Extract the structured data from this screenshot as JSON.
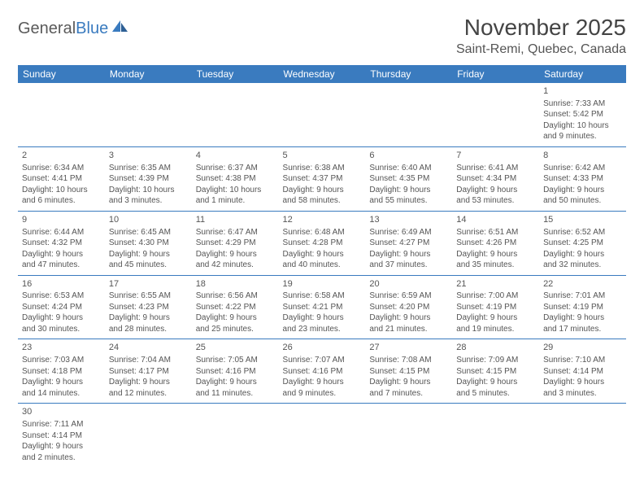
{
  "logo": {
    "part1": "General",
    "part2": "Blue"
  },
  "title": "November 2025",
  "location": "Saint-Remi, Quebec, Canada",
  "colors": {
    "header_bg": "#3a7bbf",
    "header_text": "#ffffff",
    "border": "#3a7bbf",
    "body_text": "#555555",
    "page_bg": "#ffffff"
  },
  "weekdays": [
    "Sunday",
    "Monday",
    "Tuesday",
    "Wednesday",
    "Thursday",
    "Friday",
    "Saturday"
  ],
  "weeks": [
    [
      null,
      null,
      null,
      null,
      null,
      null,
      {
        "n": "1",
        "sr": "Sunrise: 7:33 AM",
        "ss": "Sunset: 5:42 PM",
        "d1": "Daylight: 10 hours",
        "d2": "and 9 minutes."
      }
    ],
    [
      {
        "n": "2",
        "sr": "Sunrise: 6:34 AM",
        "ss": "Sunset: 4:41 PM",
        "d1": "Daylight: 10 hours",
        "d2": "and 6 minutes."
      },
      {
        "n": "3",
        "sr": "Sunrise: 6:35 AM",
        "ss": "Sunset: 4:39 PM",
        "d1": "Daylight: 10 hours",
        "d2": "and 3 minutes."
      },
      {
        "n": "4",
        "sr": "Sunrise: 6:37 AM",
        "ss": "Sunset: 4:38 PM",
        "d1": "Daylight: 10 hours",
        "d2": "and 1 minute."
      },
      {
        "n": "5",
        "sr": "Sunrise: 6:38 AM",
        "ss": "Sunset: 4:37 PM",
        "d1": "Daylight: 9 hours",
        "d2": "and 58 minutes."
      },
      {
        "n": "6",
        "sr": "Sunrise: 6:40 AM",
        "ss": "Sunset: 4:35 PM",
        "d1": "Daylight: 9 hours",
        "d2": "and 55 minutes."
      },
      {
        "n": "7",
        "sr": "Sunrise: 6:41 AM",
        "ss": "Sunset: 4:34 PM",
        "d1": "Daylight: 9 hours",
        "d2": "and 53 minutes."
      },
      {
        "n": "8",
        "sr": "Sunrise: 6:42 AM",
        "ss": "Sunset: 4:33 PM",
        "d1": "Daylight: 9 hours",
        "d2": "and 50 minutes."
      }
    ],
    [
      {
        "n": "9",
        "sr": "Sunrise: 6:44 AM",
        "ss": "Sunset: 4:32 PM",
        "d1": "Daylight: 9 hours",
        "d2": "and 47 minutes."
      },
      {
        "n": "10",
        "sr": "Sunrise: 6:45 AM",
        "ss": "Sunset: 4:30 PM",
        "d1": "Daylight: 9 hours",
        "d2": "and 45 minutes."
      },
      {
        "n": "11",
        "sr": "Sunrise: 6:47 AM",
        "ss": "Sunset: 4:29 PM",
        "d1": "Daylight: 9 hours",
        "d2": "and 42 minutes."
      },
      {
        "n": "12",
        "sr": "Sunrise: 6:48 AM",
        "ss": "Sunset: 4:28 PM",
        "d1": "Daylight: 9 hours",
        "d2": "and 40 minutes."
      },
      {
        "n": "13",
        "sr": "Sunrise: 6:49 AM",
        "ss": "Sunset: 4:27 PM",
        "d1": "Daylight: 9 hours",
        "d2": "and 37 minutes."
      },
      {
        "n": "14",
        "sr": "Sunrise: 6:51 AM",
        "ss": "Sunset: 4:26 PM",
        "d1": "Daylight: 9 hours",
        "d2": "and 35 minutes."
      },
      {
        "n": "15",
        "sr": "Sunrise: 6:52 AM",
        "ss": "Sunset: 4:25 PM",
        "d1": "Daylight: 9 hours",
        "d2": "and 32 minutes."
      }
    ],
    [
      {
        "n": "16",
        "sr": "Sunrise: 6:53 AM",
        "ss": "Sunset: 4:24 PM",
        "d1": "Daylight: 9 hours",
        "d2": "and 30 minutes."
      },
      {
        "n": "17",
        "sr": "Sunrise: 6:55 AM",
        "ss": "Sunset: 4:23 PM",
        "d1": "Daylight: 9 hours",
        "d2": "and 28 minutes."
      },
      {
        "n": "18",
        "sr": "Sunrise: 6:56 AM",
        "ss": "Sunset: 4:22 PM",
        "d1": "Daylight: 9 hours",
        "d2": "and 25 minutes."
      },
      {
        "n": "19",
        "sr": "Sunrise: 6:58 AM",
        "ss": "Sunset: 4:21 PM",
        "d1": "Daylight: 9 hours",
        "d2": "and 23 minutes."
      },
      {
        "n": "20",
        "sr": "Sunrise: 6:59 AM",
        "ss": "Sunset: 4:20 PM",
        "d1": "Daylight: 9 hours",
        "d2": "and 21 minutes."
      },
      {
        "n": "21",
        "sr": "Sunrise: 7:00 AM",
        "ss": "Sunset: 4:19 PM",
        "d1": "Daylight: 9 hours",
        "d2": "and 19 minutes."
      },
      {
        "n": "22",
        "sr": "Sunrise: 7:01 AM",
        "ss": "Sunset: 4:19 PM",
        "d1": "Daylight: 9 hours",
        "d2": "and 17 minutes."
      }
    ],
    [
      {
        "n": "23",
        "sr": "Sunrise: 7:03 AM",
        "ss": "Sunset: 4:18 PM",
        "d1": "Daylight: 9 hours",
        "d2": "and 14 minutes."
      },
      {
        "n": "24",
        "sr": "Sunrise: 7:04 AM",
        "ss": "Sunset: 4:17 PM",
        "d1": "Daylight: 9 hours",
        "d2": "and 12 minutes."
      },
      {
        "n": "25",
        "sr": "Sunrise: 7:05 AM",
        "ss": "Sunset: 4:16 PM",
        "d1": "Daylight: 9 hours",
        "d2": "and 11 minutes."
      },
      {
        "n": "26",
        "sr": "Sunrise: 7:07 AM",
        "ss": "Sunset: 4:16 PM",
        "d1": "Daylight: 9 hours",
        "d2": "and 9 minutes."
      },
      {
        "n": "27",
        "sr": "Sunrise: 7:08 AM",
        "ss": "Sunset: 4:15 PM",
        "d1": "Daylight: 9 hours",
        "d2": "and 7 minutes."
      },
      {
        "n": "28",
        "sr": "Sunrise: 7:09 AM",
        "ss": "Sunset: 4:15 PM",
        "d1": "Daylight: 9 hours",
        "d2": "and 5 minutes."
      },
      {
        "n": "29",
        "sr": "Sunrise: 7:10 AM",
        "ss": "Sunset: 4:14 PM",
        "d1": "Daylight: 9 hours",
        "d2": "and 3 minutes."
      }
    ],
    [
      {
        "n": "30",
        "sr": "Sunrise: 7:11 AM",
        "ss": "Sunset: 4:14 PM",
        "d1": "Daylight: 9 hours",
        "d2": "and 2 minutes."
      },
      null,
      null,
      null,
      null,
      null,
      null
    ]
  ]
}
